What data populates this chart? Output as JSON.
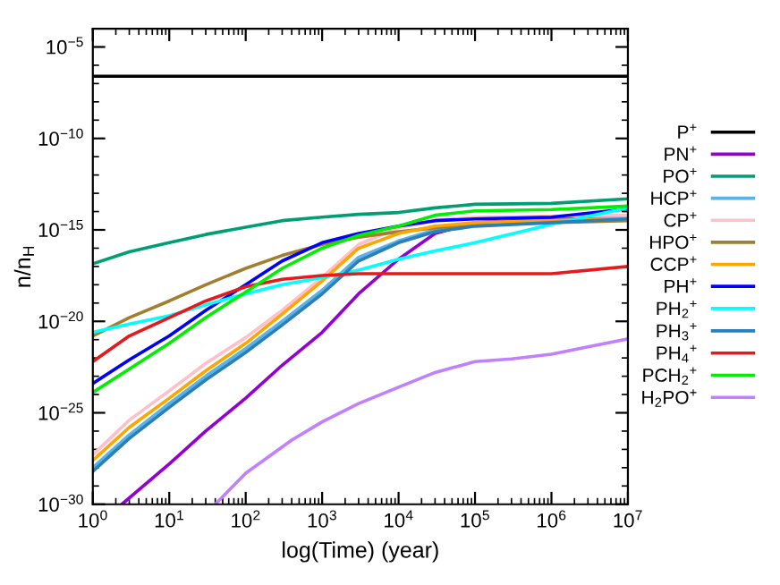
{
  "chart_data": {
    "type": "line",
    "xlabel": "log(Time) (year)",
    "ylabel": "n/n$_{H}$",
    "log": "xy",
    "xlim": [
      1,
      10000000
    ],
    "ylim": [
      1e-30,
      0.0001
    ],
    "xticks": [
      {
        "value": 1,
        "label": "10$^{0}$"
      },
      {
        "value": 10,
        "label": "10$^{1}$"
      },
      {
        "value": 100,
        "label": "10$^{2}$"
      },
      {
        "value": 1000,
        "label": "10$^{3}$"
      },
      {
        "value": 10000,
        "label": "10$^{4}$"
      },
      {
        "value": 100000,
        "label": "10$^{5}$"
      },
      {
        "value": 1000000,
        "label": "10$^{6}$"
      },
      {
        "value": 10000000,
        "label": "10$^{7}$"
      }
    ],
    "yticks": [
      {
        "value": 1e-05,
        "label": "10$^{−5}$"
      },
      {
        "value": 1e-10,
        "label": "10$^{−10}$"
      },
      {
        "value": 1e-15,
        "label": "10$^{−15}$"
      },
      {
        "value": 1e-20,
        "label": "10$^{−20}$"
      },
      {
        "value": 1e-25,
        "label": "10$^{−25}$"
      },
      {
        "value": 1e-30,
        "label": "10$^{−30}$"
      }
    ],
    "grid": false,
    "legend": "right",
    "marker": "none",
    "line_style": "solid",
    "x": [
      1,
      3,
      10,
      30,
      100,
      300,
      1000,
      3000,
      10000,
      30000,
      100000,
      1000000,
      10000000
    ],
    "series": [
      {
        "name": "P$^{+}$",
        "color": "#000000",
        "x": [
          1,
          10000000
        ],
        "values": [
          2.5e-07,
          2.5e-07
        ]
      },
      {
        "name": "PN$^{+}$",
        "color": "#9400d3",
        "x": [
          2.4,
          10,
          30,
          100,
          300,
          1000,
          3000,
          10000,
          30000,
          100000,
          1000000,
          10000000
        ],
        "values": [
          1e-30,
          1.6e-28,
          1e-26,
          6.3e-25,
          4e-23,
          2.5e-21,
          3.2e-19,
          2.5e-17,
          6.3e-16,
          2.5e-15,
          4e-15,
          5e-15
        ]
      },
      {
        "name": "PO$^{+}$",
        "color": "#009e73",
        "values": [
          1.4e-17,
          6.3e-17,
          2e-16,
          5.6e-16,
          1.4e-15,
          3.2e-15,
          5e-15,
          7.1e-15,
          8.9e-15,
          1.6e-14,
          2.5e-14,
          2.8e-14,
          5e-14
        ]
      },
      {
        "name": "HCP$^{+}$",
        "color": "#56b4e9",
        "values": [
          1e-28,
          6.3e-27,
          3.2e-25,
          1e-23,
          3.2e-22,
          1e-20,
          5e-19,
          3.2e-17,
          2.5e-16,
          1e-15,
          2e-15,
          3.2e-15,
          4.5e-15
        ]
      },
      {
        "name": "CP$^{+}$",
        "color": "#ffc0cb",
        "x": [
          1,
          3,
          10,
          30,
          100,
          300,
          1000,
          3000,
          10000,
          30000,
          100000,
          10000000
        ],
        "values": [
          5e-28,
          4e-26,
          1.6e-24,
          5e-23,
          1.3e-21,
          4e-20,
          2.5e-18,
          1.6e-16,
          1.3e-15,
          3.2e-15,
          5e-15,
          6.3e-15
        ]
      },
      {
        "name": "HPO$^{+}$",
        "color": "#a08030",
        "values": [
          1.6e-21,
          1.6e-20,
          1.3e-19,
          1e-18,
          7.9e-18,
          4e-17,
          1.6e-16,
          4e-16,
          7.9e-16,
          1.3e-15,
          2e-15,
          2.5e-15,
          3.2e-15
        ]
      },
      {
        "name": "CCP$^{+}$",
        "color": "#ffa500",
        "values": [
          2.5e-28,
          1.6e-26,
          6.3e-25,
          2e-23,
          6.3e-22,
          2.5e-20,
          1.6e-18,
          1e-16,
          6.3e-16,
          1.6e-15,
          2.5e-15,
          3.2e-15,
          4e-15
        ]
      },
      {
        "name": "PH$^{+}$",
        "color": "#0000ff",
        "values": [
          4e-24,
          7.9e-23,
          1.6e-21,
          4e-20,
          1e-18,
          2e-17,
          2e-16,
          6.3e-16,
          1.6e-15,
          3.2e-15,
          4e-15,
          5e-15,
          1.4e-14
        ]
      },
      {
        "name": "PH$_{2}$$^{+}$",
        "color": "#00ffff",
        "values": [
          2.5e-21,
          7.1e-21,
          2e-20,
          7.9e-20,
          3.2e-19,
          1e-18,
          2.5e-18,
          6.3e-18,
          2.5e-17,
          7.1e-17,
          2e-16,
          2e-15,
          1.6e-14
        ]
      },
      {
        "name": "PH$_{3}$$^{+}$",
        "color": "#2a7fb8",
        "values": [
          6.3e-29,
          4e-27,
          2e-25,
          6.3e-24,
          2e-22,
          6.3e-21,
          3.2e-19,
          2e-17,
          2e-16,
          7.9e-16,
          1.6e-15,
          2.5e-15,
          4e-15
        ]
      },
      {
        "name": "PH$_{4}$$^{+}$",
        "color": "#e41a1c",
        "values": [
          6.3e-23,
          1.6e-21,
          1.6e-20,
          1.3e-19,
          7.9e-19,
          2e-18,
          3.2e-18,
          4e-18,
          4e-18,
          4e-18,
          4e-18,
          4e-18,
          1e-17
        ]
      },
      {
        "name": "PCH$_{2}$$^{+}$",
        "color": "#00ee00",
        "values": [
          1.3e-24,
          2.5e-23,
          6.3e-22,
          1.6e-20,
          4e-19,
          7.9e-18,
          1e-16,
          5e-16,
          1.6e-15,
          6.3e-15,
          1.1e-14,
          1.3e-14,
          2e-14
        ]
      },
      {
        "name": "H$_{2}$PO$^{+}$",
        "color": "#c080ff",
        "x": [
          40,
          100,
          400,
          1000,
          3000,
          10000,
          30000,
          100000,
          300000,
          1000000,
          3000000,
          10000000
        ],
        "values": [
          1e-30,
          5e-29,
          3.2e-27,
          3.2e-26,
          3.2e-25,
          2.5e-24,
          1.6e-23,
          6.3e-23,
          8.9e-23,
          1.6e-22,
          4e-22,
          1.1e-21
        ]
      }
    ]
  }
}
